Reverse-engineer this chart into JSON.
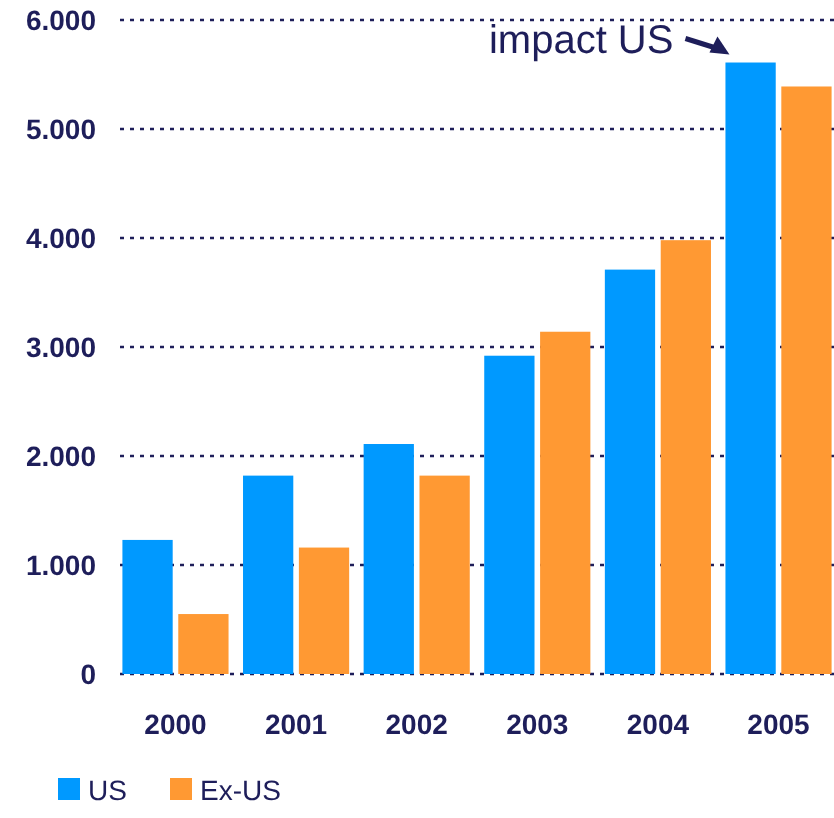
{
  "chart_data": {
    "type": "bar",
    "categories": [
      "2000",
      "2001",
      "2002",
      "2003",
      "2004",
      "2005"
    ],
    "series": [
      {
        "name": "US",
        "color": "#0099ff",
        "values": [
          1230,
          1820,
          2110,
          2920,
          3710,
          5610
        ]
      },
      {
        "name": "Ex-US",
        "color": "#ff9933",
        "values": [
          550,
          1160,
          1820,
          3140,
          3980,
          5390
        ]
      }
    ],
    "ylim": [
      0,
      6000
    ],
    "yticks": [
      0,
      {
        "value": 1000,
        "label": "1.000"
      },
      {
        "value": 2000,
        "label": "2.000"
      },
      {
        "value": 3000,
        "label": "3.000"
      },
      {
        "value": 4000,
        "label": "4.000"
      },
      {
        "value": 5000,
        "label": "5.000"
      },
      {
        "value": 6000,
        "label": "6.000"
      }
    ],
    "grid": "y",
    "legend": "bottom left",
    "annotations": [
      {
        "text": "impact US",
        "x": "2005",
        "y": 5610
      }
    ]
  }
}
